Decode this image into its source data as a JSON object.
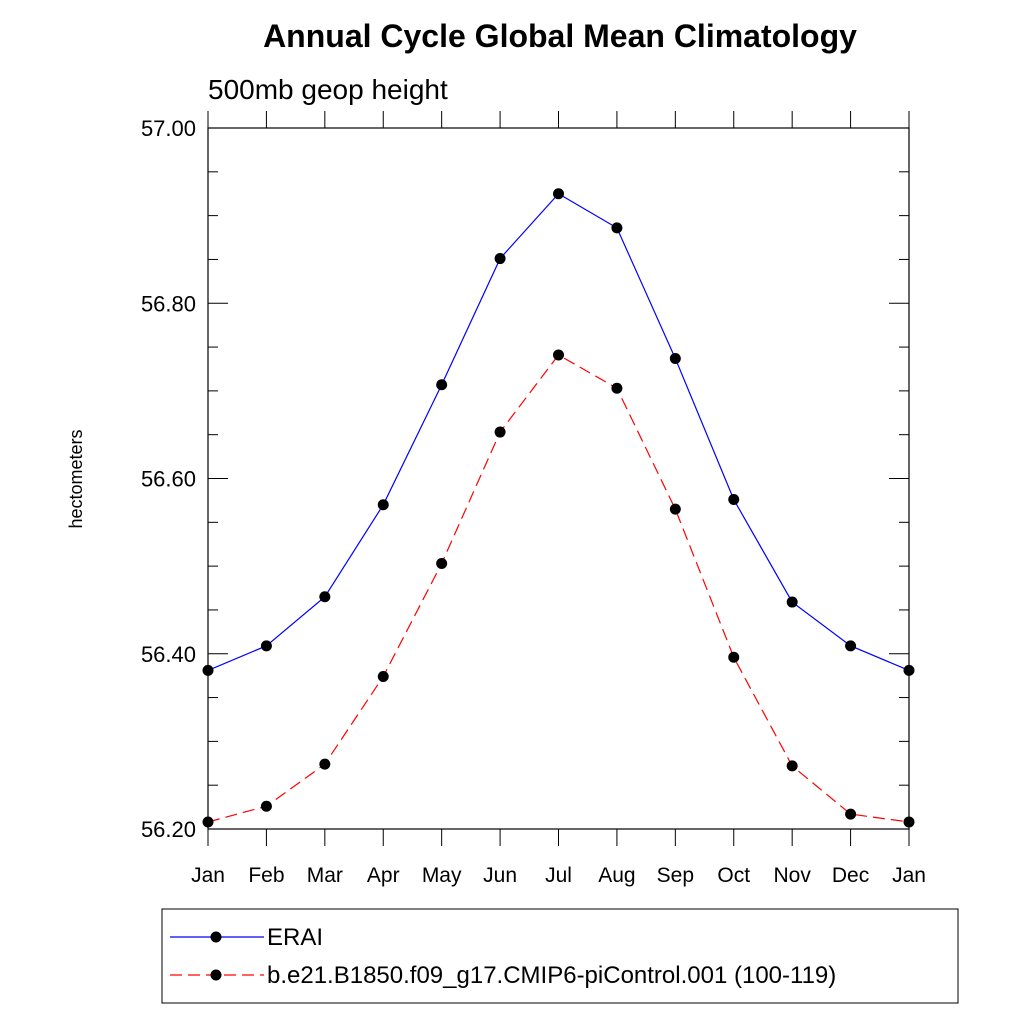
{
  "chart_data": {
    "type": "line",
    "title": "Annual Cycle Global Mean Climatology",
    "subtitle": "500mb geop height",
    "ylabel": "hectometers",
    "xlabel": "",
    "categories": [
      "Jan",
      "Feb",
      "Mar",
      "Apr",
      "May",
      "Jun",
      "Jul",
      "Aug",
      "Sep",
      "Oct",
      "Nov",
      "Dec",
      "Jan"
    ],
    "ylim": [
      56.2,
      57.0
    ],
    "yticks": [
      "56.20",
      "56.40",
      "56.60",
      "56.80",
      "57.00"
    ],
    "grid": false,
    "legend_position": "bottom",
    "series": [
      {
        "name": "ERAI",
        "color": "#0000ff",
        "line_style": "solid",
        "marker": "filled-circle",
        "values": [
          56.381,
          56.409,
          56.465,
          56.57,
          56.707,
          56.851,
          56.925,
          56.886,
          56.737,
          56.576,
          56.459,
          56.409,
          56.381
        ]
      },
      {
        "name": "b.e21.B1850.f09_g17.CMIP6-piControl.001 (100-119)",
        "color": "#ff0000",
        "line_style": "dashed",
        "marker": "filled-circle",
        "values": [
          56.208,
          56.226,
          56.274,
          56.374,
          56.503,
          56.653,
          56.741,
          56.703,
          56.565,
          56.396,
          56.272,
          56.217,
          56.208
        ]
      }
    ]
  }
}
